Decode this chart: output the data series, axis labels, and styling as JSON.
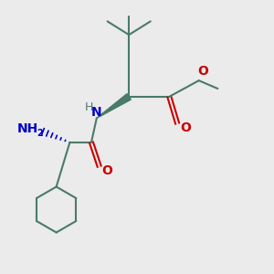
{
  "background_color": "#ebebeb",
  "bond_color": "#4a7a6a",
  "bond_width": 1.5,
  "N_color": "#0000cc",
  "O_color": "#cc0000",
  "H_color": "#4a7a6a",
  "figsize": [
    3.0,
    3.0
  ],
  "dpi": 100,
  "xlim": [
    0,
    10
  ],
  "ylim": [
    0,
    10
  ]
}
